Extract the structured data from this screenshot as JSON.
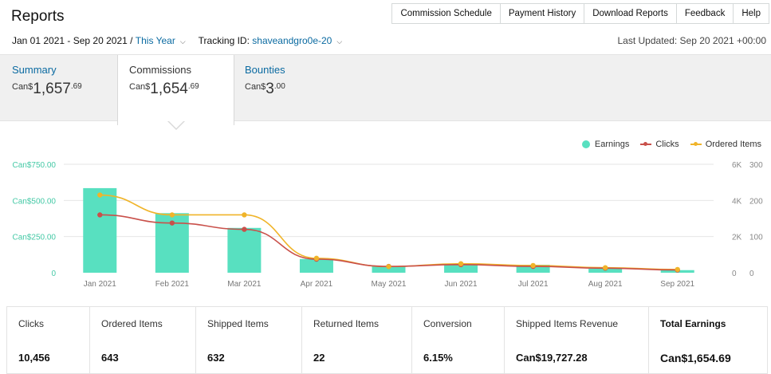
{
  "header": {
    "title": "Reports",
    "nav": [
      {
        "label": "Commission Schedule",
        "name": "commission-schedule-button"
      },
      {
        "label": "Payment History",
        "name": "payment-history-button"
      },
      {
        "label": "Download Reports",
        "name": "download-reports-button"
      },
      {
        "label": "Feedback",
        "name": "feedback-button"
      },
      {
        "label": "Help",
        "name": "help-button"
      }
    ]
  },
  "filters": {
    "date_range": "Jan 01 2021 - Sep 20 2021 /",
    "period": "This Year",
    "tracking_label": "Tracking ID:",
    "tracking_id": "shaveandgro0e-20",
    "last_updated": "Last Updated: Sep 20 2021 +00:00"
  },
  "tabs": {
    "summary": {
      "label": "Summary",
      "currency": "Can$",
      "whole": "1,657",
      "cents": ".69"
    },
    "commissions": {
      "label": "Commissions",
      "currency": "Can$",
      "whole": "1,654",
      "cents": ".69"
    },
    "bounties": {
      "label": "Bounties",
      "currency": "Can$",
      "whole": "3",
      "cents": ".00"
    }
  },
  "legend": {
    "earnings": "Earnings",
    "clicks": "Clicks",
    "ordered": "Ordered Items"
  },
  "colors": {
    "earnings": "#58e0c0",
    "clicks": "#c9504a",
    "ordered": "#f0b429",
    "axis_earnings": "#45c9a6",
    "axis_gray": "#888888"
  },
  "chart_data": {
    "type": "bar",
    "categories": [
      "Jan 2021",
      "Feb 2021",
      "Mar 2021",
      "Apr 2021",
      "May 2021",
      "Jun 2021",
      "Jul 2021",
      "Aug 2021",
      "Sep 2021"
    ],
    "y_earnings_ticks": [
      "0",
      "Can$250.00",
      "Can$500.00",
      "Can$750.00"
    ],
    "y_earnings_lim": [
      0,
      750
    ],
    "y_clicks_ticks": [
      "0",
      "2K",
      "4K",
      "6K"
    ],
    "y_clicks_lim": [
      0,
      6000
    ],
    "y_ordered_ticks": [
      "0",
      "100",
      "200",
      "300"
    ],
    "y_ordered_lim": [
      0,
      300
    ],
    "series": [
      {
        "name": "Earnings",
        "type": "bar",
        "values": [
          585,
          412,
          310,
          95,
          45,
          55,
          55,
          28,
          18
        ]
      },
      {
        "name": "Clicks",
        "type": "line",
        "values": [
          3200,
          2750,
          2400,
          750,
          350,
          450,
          350,
          250,
          150
        ]
      },
      {
        "name": "Ordered Items",
        "type": "line",
        "values": [
          215,
          160,
          160,
          40,
          17,
          25,
          20,
          14,
          9
        ]
      }
    ]
  },
  "stats": [
    {
      "label": "Clicks",
      "value": "10,456",
      "name": "stat-clicks"
    },
    {
      "label": "Ordered Items",
      "value": "643",
      "name": "stat-ordered-items"
    },
    {
      "label": "Shipped Items",
      "value": "632",
      "name": "stat-shipped-items"
    },
    {
      "label": "Returned Items",
      "value": "22",
      "name": "stat-returned-items"
    },
    {
      "label": "Conversion",
      "value": "6.15%",
      "name": "stat-conversion"
    },
    {
      "label": "Shipped Items Revenue",
      "value": "Can$19,727.28",
      "name": "stat-shipped-revenue"
    },
    {
      "label": "Total Earnings",
      "value": "Can$1,654.69",
      "name": "stat-total-earnings"
    }
  ]
}
